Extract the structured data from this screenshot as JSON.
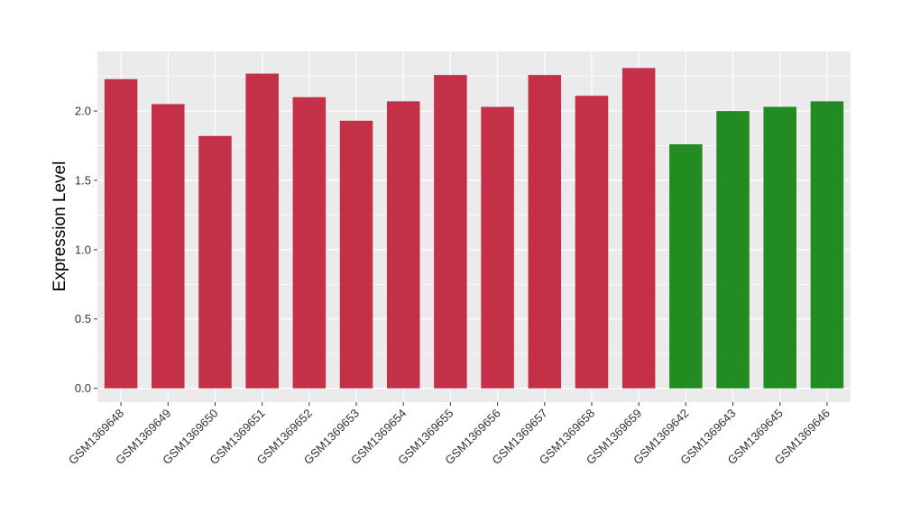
{
  "chart_data": {
    "type": "bar",
    "title": "",
    "xlabel": "",
    "ylabel": "Expression Level",
    "ylim": [
      -0.1,
      2.43
    ],
    "yticks": [
      0.0,
      0.5,
      1.0,
      1.5,
      2.0
    ],
    "ytick_labels": [
      "0.0",
      "0.5",
      "1.0",
      "1.5",
      "2.0"
    ],
    "grid": true,
    "legend": "none",
    "categories": [
      "GSM1369648",
      "GSM1369649",
      "GSM1369650",
      "GSM1369651",
      "GSM1369652",
      "GSM1369653",
      "GSM1369654",
      "GSM1369655",
      "GSM1369656",
      "GSM1369657",
      "GSM1369658",
      "GSM1369659",
      "GSM1369642",
      "GSM1369643",
      "GSM1369645",
      "GSM1369646"
    ],
    "values": [
      2.23,
      2.05,
      1.82,
      2.27,
      2.1,
      1.93,
      2.07,
      2.26,
      2.03,
      2.26,
      2.11,
      2.31,
      1.76,
      2.0,
      2.03,
      2.07
    ],
    "colors": [
      "#c33048",
      "#c33048",
      "#c33048",
      "#c33048",
      "#c33048",
      "#c33048",
      "#c33048",
      "#c33048",
      "#c33048",
      "#c33048",
      "#c33048",
      "#c33048",
      "#228b22",
      "#228b22",
      "#228b22",
      "#228b22"
    ],
    "panel_color": "#ebebeb",
    "grid_color": "#ffffff"
  }
}
